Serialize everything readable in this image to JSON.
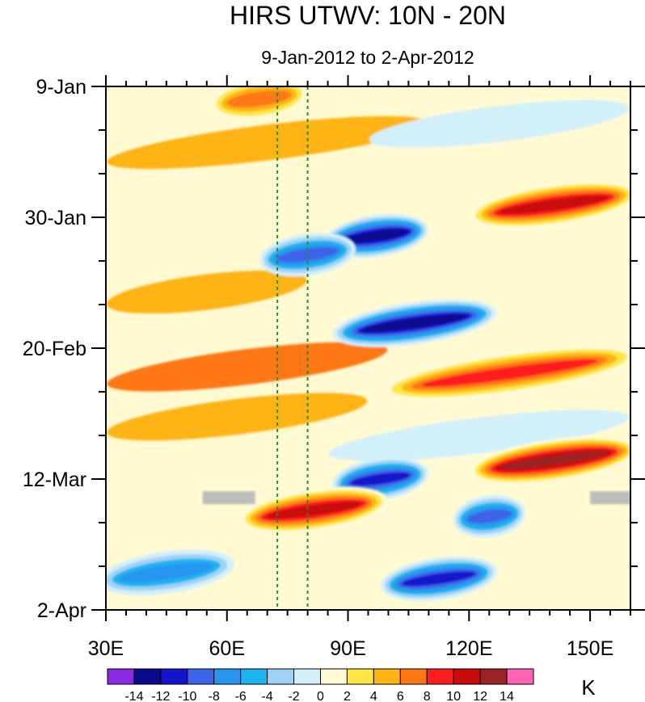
{
  "chart_data": {
    "type": "heatmap",
    "title": "HIRS UTWV: 10N - 20N",
    "subtitle": "9-Jan-2012 to 2-Apr-2012",
    "xlabel": "",
    "ylabel": "",
    "x_range": [
      30,
      160
    ],
    "x_unit": "degrees E",
    "x_ticks": [
      {
        "value": 30,
        "label": "30E"
      },
      {
        "value": 60,
        "label": "60E"
      },
      {
        "value": 90,
        "label": "90E"
      },
      {
        "value": 120,
        "label": "120E"
      },
      {
        "value": 150,
        "label": "150E"
      }
    ],
    "y_range": [
      "2012-01-09",
      "2012-04-02"
    ],
    "y_direction": "time increases downward",
    "y_ticks": [
      {
        "value": "2012-01-09",
        "label": "9-Jan"
      },
      {
        "value": "2012-01-30",
        "label": "30-Jan"
      },
      {
        "value": "2012-02-20",
        "label": "20-Feb"
      },
      {
        "value": "2012-03-12",
        "label": "12-Mar"
      },
      {
        "value": "2012-04-02",
        "label": "2-Apr"
      }
    ],
    "reference_lines": [
      {
        "orientation": "vertical",
        "x": 72.5,
        "style": "dashed",
        "color": "#2a8a2a"
      },
      {
        "orientation": "vertical",
        "x": 80,
        "style": "dashed",
        "color": "#2a8a2a"
      }
    ],
    "colorbar": {
      "unit": "K",
      "labels": [
        "-14",
        "-12",
        "-10",
        "-8",
        "-6",
        "-4",
        "-2",
        "0",
        "2",
        "4",
        "6",
        "8",
        "10",
        "12",
        "14"
      ],
      "colors": [
        "#8a2be2",
        "#0a0a8c",
        "#1414cc",
        "#3c64e6",
        "#2896f0",
        "#1eb4f0",
        "#a0d2f5",
        "#d2f0fa",
        "#fffad2",
        "#ffe646",
        "#ffb414",
        "#ff7814",
        "#ff1e1e",
        "#c80a0a",
        "#9b2323",
        "#ff64b4"
      ]
    },
    "features": [
      {
        "sign": "positive",
        "date": "2012-01-11",
        "lon_range": [
          58,
          78
        ],
        "peak_K": 8
      },
      {
        "sign": "positive",
        "date": "2012-01-28",
        "lon_range": [
          122,
          160
        ],
        "peak_K": 12
      },
      {
        "sign": "negative",
        "date": "2012-02-02",
        "lon_range": [
          86,
          108
        ],
        "peak_K": -14
      },
      {
        "sign": "negative",
        "date": "2012-02-05",
        "lon_range": [
          70,
          90
        ],
        "peak_K": -10
      },
      {
        "sign": "negative",
        "date": "2012-02-16",
        "lon_range": [
          88,
          125
        ],
        "peak_K": -14
      },
      {
        "sign": "positive",
        "date": "2012-02-24",
        "lon_range": [
          100,
          160
        ],
        "peak_K": 10
      },
      {
        "sign": "positive",
        "date": "2012-03-09",
        "lon_range": [
          122,
          160
        ],
        "peak_K": 14
      },
      {
        "sign": "negative",
        "date": "2012-03-12",
        "lon_range": [
          88,
          108
        ],
        "peak_K": -12
      },
      {
        "sign": "positive",
        "date": "2012-03-17",
        "lon_range": [
          65,
          98
        ],
        "peak_K": 12
      },
      {
        "sign": "negative",
        "date": "2012-03-18",
        "lon_range": [
          118,
          132
        ],
        "peak_K": -10
      },
      {
        "sign": "negative",
        "date": "2012-03-27",
        "lon_range": [
          30,
          60
        ],
        "peak_K": -8
      },
      {
        "sign": "negative",
        "date": "2012-03-28",
        "lon_range": [
          100,
          125
        ],
        "peak_K": -12
      },
      {
        "sign": "missing",
        "date": "2012-03-15",
        "lon_range": [
          54,
          67
        ]
      },
      {
        "sign": "missing",
        "date": "2012-03-15",
        "lon_range": [
          150,
          160
        ]
      }
    ]
  }
}
